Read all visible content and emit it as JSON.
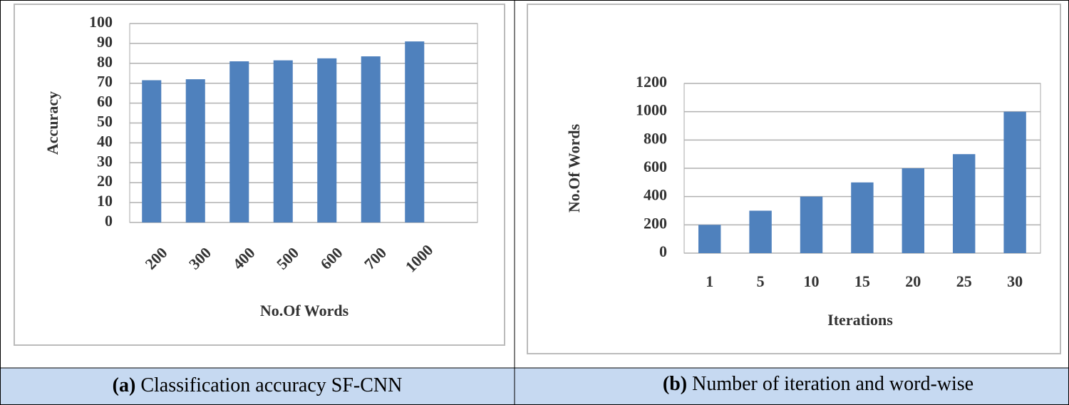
{
  "chart_data": [
    {
      "type": "bar",
      "caption_label": "(a)",
      "caption": "Classification accuracy SF-CNN",
      "xlabel": "No.Of Words",
      "ylabel": "Accuracy",
      "categories": [
        "200",
        "300",
        "400",
        "500",
        "600",
        "700",
        "1000"
      ],
      "values": [
        71.5,
        72,
        81,
        81.5,
        82.5,
        83.5,
        91
      ],
      "color": "#4f81bd",
      "ylim": [
        0,
        100
      ],
      "yticks": [
        0,
        10,
        20,
        30,
        40,
        50,
        60,
        70,
        80,
        90,
        100
      ],
      "grid": true,
      "xtick_rotation": -45
    },
    {
      "type": "bar",
      "caption_label": "(b)",
      "caption": "Number of iteration and word-wise",
      "xlabel": "Iterations",
      "ylabel": "No.Of Words",
      "categories": [
        "1",
        "5",
        "10",
        "15",
        "20",
        "25",
        "30"
      ],
      "values": [
        200,
        300,
        400,
        500,
        600,
        700,
        1000
      ],
      "color": "#4f81bd",
      "ylim": [
        0,
        1200
      ],
      "yticks": [
        0,
        200,
        400,
        600,
        800,
        1000,
        1200
      ],
      "grid": true,
      "xtick_rotation": 0
    }
  ]
}
